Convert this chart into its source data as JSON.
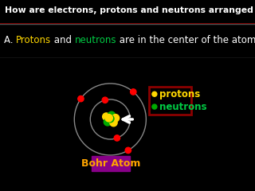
{
  "bg_color": "#000000",
  "title_text": "How are electrons, protons and neutrons arranged in the atom?",
  "title_color": "#FFFFFF",
  "title_bg": "#000000",
  "title_border_color": "#8B0000",
  "answer_prefix": "A. ",
  "answer_protons": "Protons",
  "answer_mid": " and ",
  "answer_neutrons": "neutrons",
  "answer_suffix": " are in the center of the atom.",
  "answer_color": "#FFFFFF",
  "answer_protons_color": "#FFD700",
  "answer_neutrons_color": "#00CC44",
  "answer_bg": "#000066",
  "proton_color": "#FFD700",
  "neutron_color": "#00AA00",
  "electron_color": "#FF0000",
  "orbit_color": "#888888",
  "bohr_label": "Bohr Atom",
  "bohr_label_color": "#FFA500",
  "bohr_bg_color": "#880088",
  "legend_border_color": "#8B0000",
  "legend_bg_color": "#000000",
  "legend_proton_text": "protons",
  "legend_neutron_text": "neutrons",
  "legend_proton_color": "#FFD700",
  "legend_neutron_color": "#00CC44",
  "title_fontsize": 7.8,
  "answer_fontsize": 8.5,
  "legend_fontsize": 8.5
}
